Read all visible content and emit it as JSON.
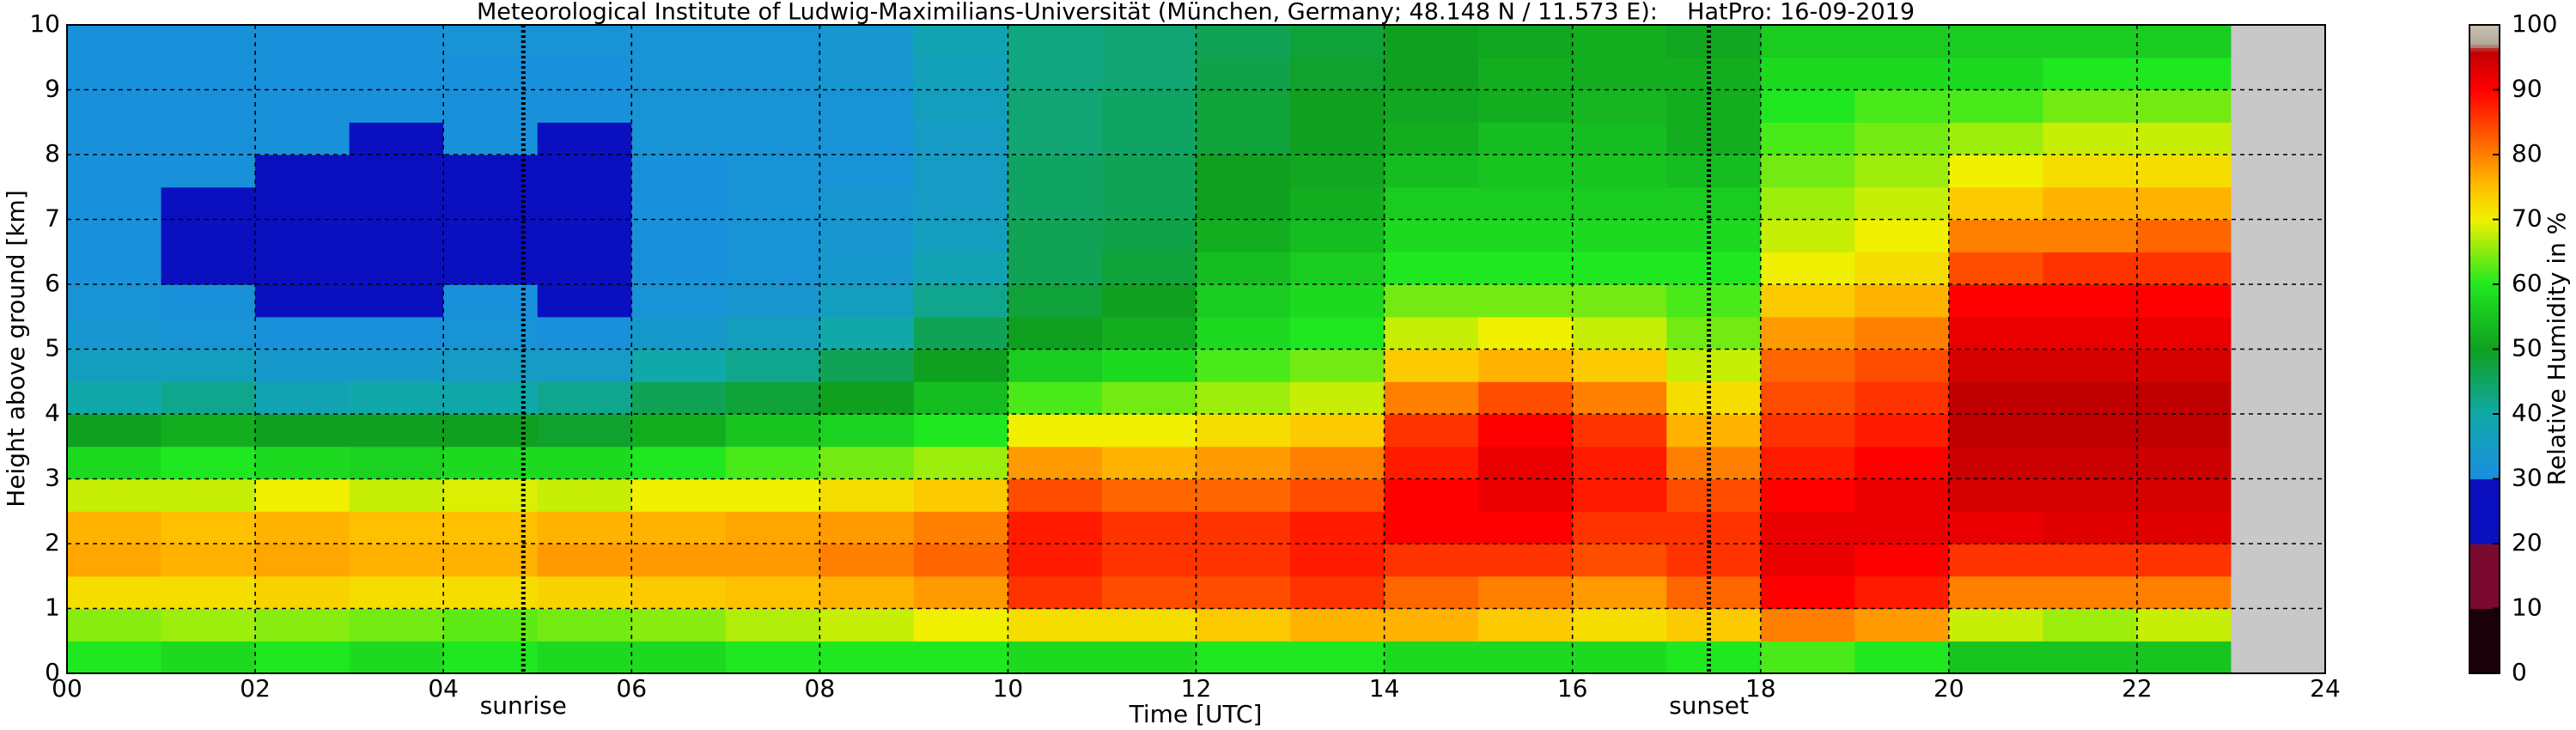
{
  "chart_data": {
    "type": "heatmap",
    "title": "Meteorological Institute of Ludwig-Maximilians-Universität (München, Germany; 48.148 N / 11.573 E):    HatPro: 16-09-2019",
    "x_label": "Time [UTC]",
    "y_label": "Height above ground [km]",
    "colorbar_label": "Relative Humidity in %",
    "xlim": [
      0,
      24
    ],
    "xticks": [
      {
        "value": 0,
        "label": "00"
      },
      {
        "value": 2,
        "label": "02"
      },
      {
        "value": 4,
        "label": "04"
      },
      {
        "value": 6,
        "label": "06"
      },
      {
        "value": 8,
        "label": "08"
      },
      10,
      12,
      14,
      16,
      18,
      20,
      22,
      24
    ],
    "ylim": [
      0,
      10
    ],
    "yticks": [
      0,
      1,
      2,
      3,
      4,
      5,
      6,
      7,
      8,
      9,
      10
    ],
    "clim": [
      0,
      100
    ],
    "cticks": [
      0,
      10,
      20,
      30,
      40,
      50,
      60,
      70,
      80,
      90,
      100
    ],
    "grid": true,
    "missing_color": "#c8c8c8",
    "colorscale": [
      [
        0,
        "#1a0008"
      ],
      [
        10,
        "#1a0008"
      ],
      [
        10,
        "#7a0a30"
      ],
      [
        20,
        "#7a0a30"
      ],
      [
        20,
        "#0a10c0"
      ],
      [
        30,
        "#0a10c0"
      ],
      [
        30,
        "#1a8ee0"
      ],
      [
        40,
        "#10a8a8"
      ],
      [
        50,
        "#10a020"
      ],
      [
        60,
        "#20e820"
      ],
      [
        70,
        "#f0f000"
      ],
      [
        75,
        "#ffc000"
      ],
      [
        80,
        "#ff8000"
      ],
      [
        90,
        "#ff0000"
      ],
      [
        96,
        "#c00000"
      ],
      [
        97,
        "#b0a898"
      ],
      [
        100,
        "#c8c0b0"
      ]
    ],
    "events": [
      {
        "label": "sunrise",
        "x": 4.85
      },
      {
        "label": "sunset",
        "x": 17.45
      }
    ],
    "x": [
      0,
      1,
      2,
      3,
      4,
      5,
      6,
      7,
      8,
      9,
      10,
      11,
      12,
      13,
      14,
      15,
      16,
      17,
      18,
      19,
      20,
      21,
      22,
      23
    ],
    "y": [
      0,
      0.5,
      1,
      1.5,
      2,
      2.5,
      3,
      3.5,
      4,
      4.5,
      5,
      5.5,
      6,
      6.5,
      7,
      7.5,
      8,
      8.5,
      9,
      9.5
    ],
    "z": [
      [
        60,
        65,
        72,
        77,
        76,
        68,
        58,
        50,
        40,
        36,
        33,
        32,
        31,
        31,
        31,
        31,
        31,
        31,
        31,
        31
      ],
      [
        58,
        66,
        72,
        76,
        75,
        68,
        60,
        52,
        42,
        36,
        32,
        31,
        30,
        30,
        30,
        31,
        31,
        31,
        31,
        31
      ],
      [
        60,
        65,
        73,
        77,
        76,
        70,
        58,
        50,
        38,
        34,
        31,
        30,
        29,
        29,
        30,
        30,
        31,
        31,
        31,
        31
      ],
      [
        58,
        64,
        72,
        76,
        75,
        68,
        57,
        50,
        40,
        34,
        31,
        30,
        29,
        29,
        29,
        30,
        30,
        31,
        31,
        31
      ],
      [
        60,
        63,
        72,
        76,
        75,
        69,
        58,
        50,
        40,
        35,
        32,
        31,
        30,
        30,
        30,
        30,
        31,
        31,
        31,
        32
      ],
      [
        58,
        64,
        73,
        78,
        76,
        68,
        58,
        49,
        42,
        35,
        31,
        29,
        29,
        29,
        29,
        30,
        30,
        31,
        31,
        32
      ],
      [
        58,
        65,
        74,
        78,
        76,
        70,
        60,
        52,
        46,
        40,
        34,
        32,
        31,
        31,
        31,
        31,
        32,
        32,
        32,
        32
      ],
      [
        60,
        67,
        75,
        78,
        77,
        70,
        62,
        55,
        48,
        42,
        36,
        33,
        32,
        32,
        32,
        32,
        32,
        32,
        32,
        32
      ],
      [
        60,
        68,
        76,
        80,
        78,
        72,
        64,
        57,
        50,
        46,
        40,
        36,
        34,
        33,
        33,
        32,
        32,
        32,
        33,
        33
      ],
      [
        60,
        70,
        78,
        82,
        80,
        74,
        66,
        60,
        54,
        50,
        46,
        42,
        38,
        36,
        35,
        35,
        35,
        36,
        37,
        38
      ],
      [
        58,
        72,
        86,
        88,
        88,
        84,
        78,
        70,
        62,
        56,
        50,
        48,
        46,
        46,
        45,
        45,
        44,
        44,
        43,
        43
      ],
      [
        58,
        72,
        84,
        86,
        86,
        82,
        76,
        70,
        64,
        58,
        52,
        50,
        48,
        47,
        46,
        46,
        45,
        45,
        44,
        44
      ],
      [
        60,
        74,
        84,
        86,
        86,
        82,
        78,
        72,
        66,
        62,
        58,
        56,
        54,
        52,
        50,
        50,
        48,
        48,
        47,
        46
      ],
      [
        60,
        76,
        86,
        88,
        88,
        84,
        80,
        74,
        68,
        64,
        60,
        58,
        56,
        54,
        52,
        51,
        50,
        50,
        49,
        48
      ],
      [
        58,
        76,
        82,
        86,
        90,
        90,
        88,
        86,
        80,
        74,
        68,
        64,
        60,
        58,
        56,
        54,
        52,
        51,
        50,
        50
      ],
      [
        58,
        74,
        80,
        86,
        90,
        92,
        92,
        90,
        84,
        76,
        70,
        64,
        60,
        58,
        56,
        55,
        54,
        52,
        52,
        51
      ],
      [
        58,
        72,
        78,
        84,
        86,
        88,
        88,
        86,
        80,
        74,
        68,
        64,
        60,
        58,
        56,
        55,
        54,
        53,
        52,
        52
      ],
      [
        60,
        74,
        82,
        86,
        86,
        84,
        80,
        76,
        72,
        68,
        64,
        62,
        60,
        58,
        56,
        54,
        52,
        52,
        52,
        51
      ],
      [
        62,
        80,
        90,
        92,
        92,
        90,
        88,
        86,
        84,
        82,
        78,
        74,
        70,
        68,
        66,
        64,
        62,
        60,
        58,
        56
      ],
      [
        60,
        78,
        88,
        90,
        92,
        92,
        90,
        88,
        86,
        84,
        80,
        76,
        72,
        70,
        68,
        66,
        64,
        62,
        58,
        56
      ],
      [
        55,
        68,
        80,
        86,
        92,
        94,
        95,
        96,
        96,
        94,
        92,
        90,
        84,
        80,
        74,
        70,
        66,
        62,
        58,
        56
      ],
      [
        55,
        66,
        80,
        86,
        93,
        94,
        95,
        96,
        96,
        94,
        92,
        90,
        86,
        80,
        76,
        72,
        68,
        64,
        60,
        56
      ],
      [
        55,
        68,
        80,
        86,
        93,
        94,
        95,
        96,
        96,
        94,
        92,
        90,
        86,
        82,
        76,
        72,
        68,
        64,
        60,
        56
      ],
      [
        null,
        null,
        null,
        null,
        null,
        null,
        null,
        null,
        null,
        null,
        null,
        null,
        null,
        null,
        null,
        null,
        null,
        null,
        null,
        null
      ]
    ]
  }
}
